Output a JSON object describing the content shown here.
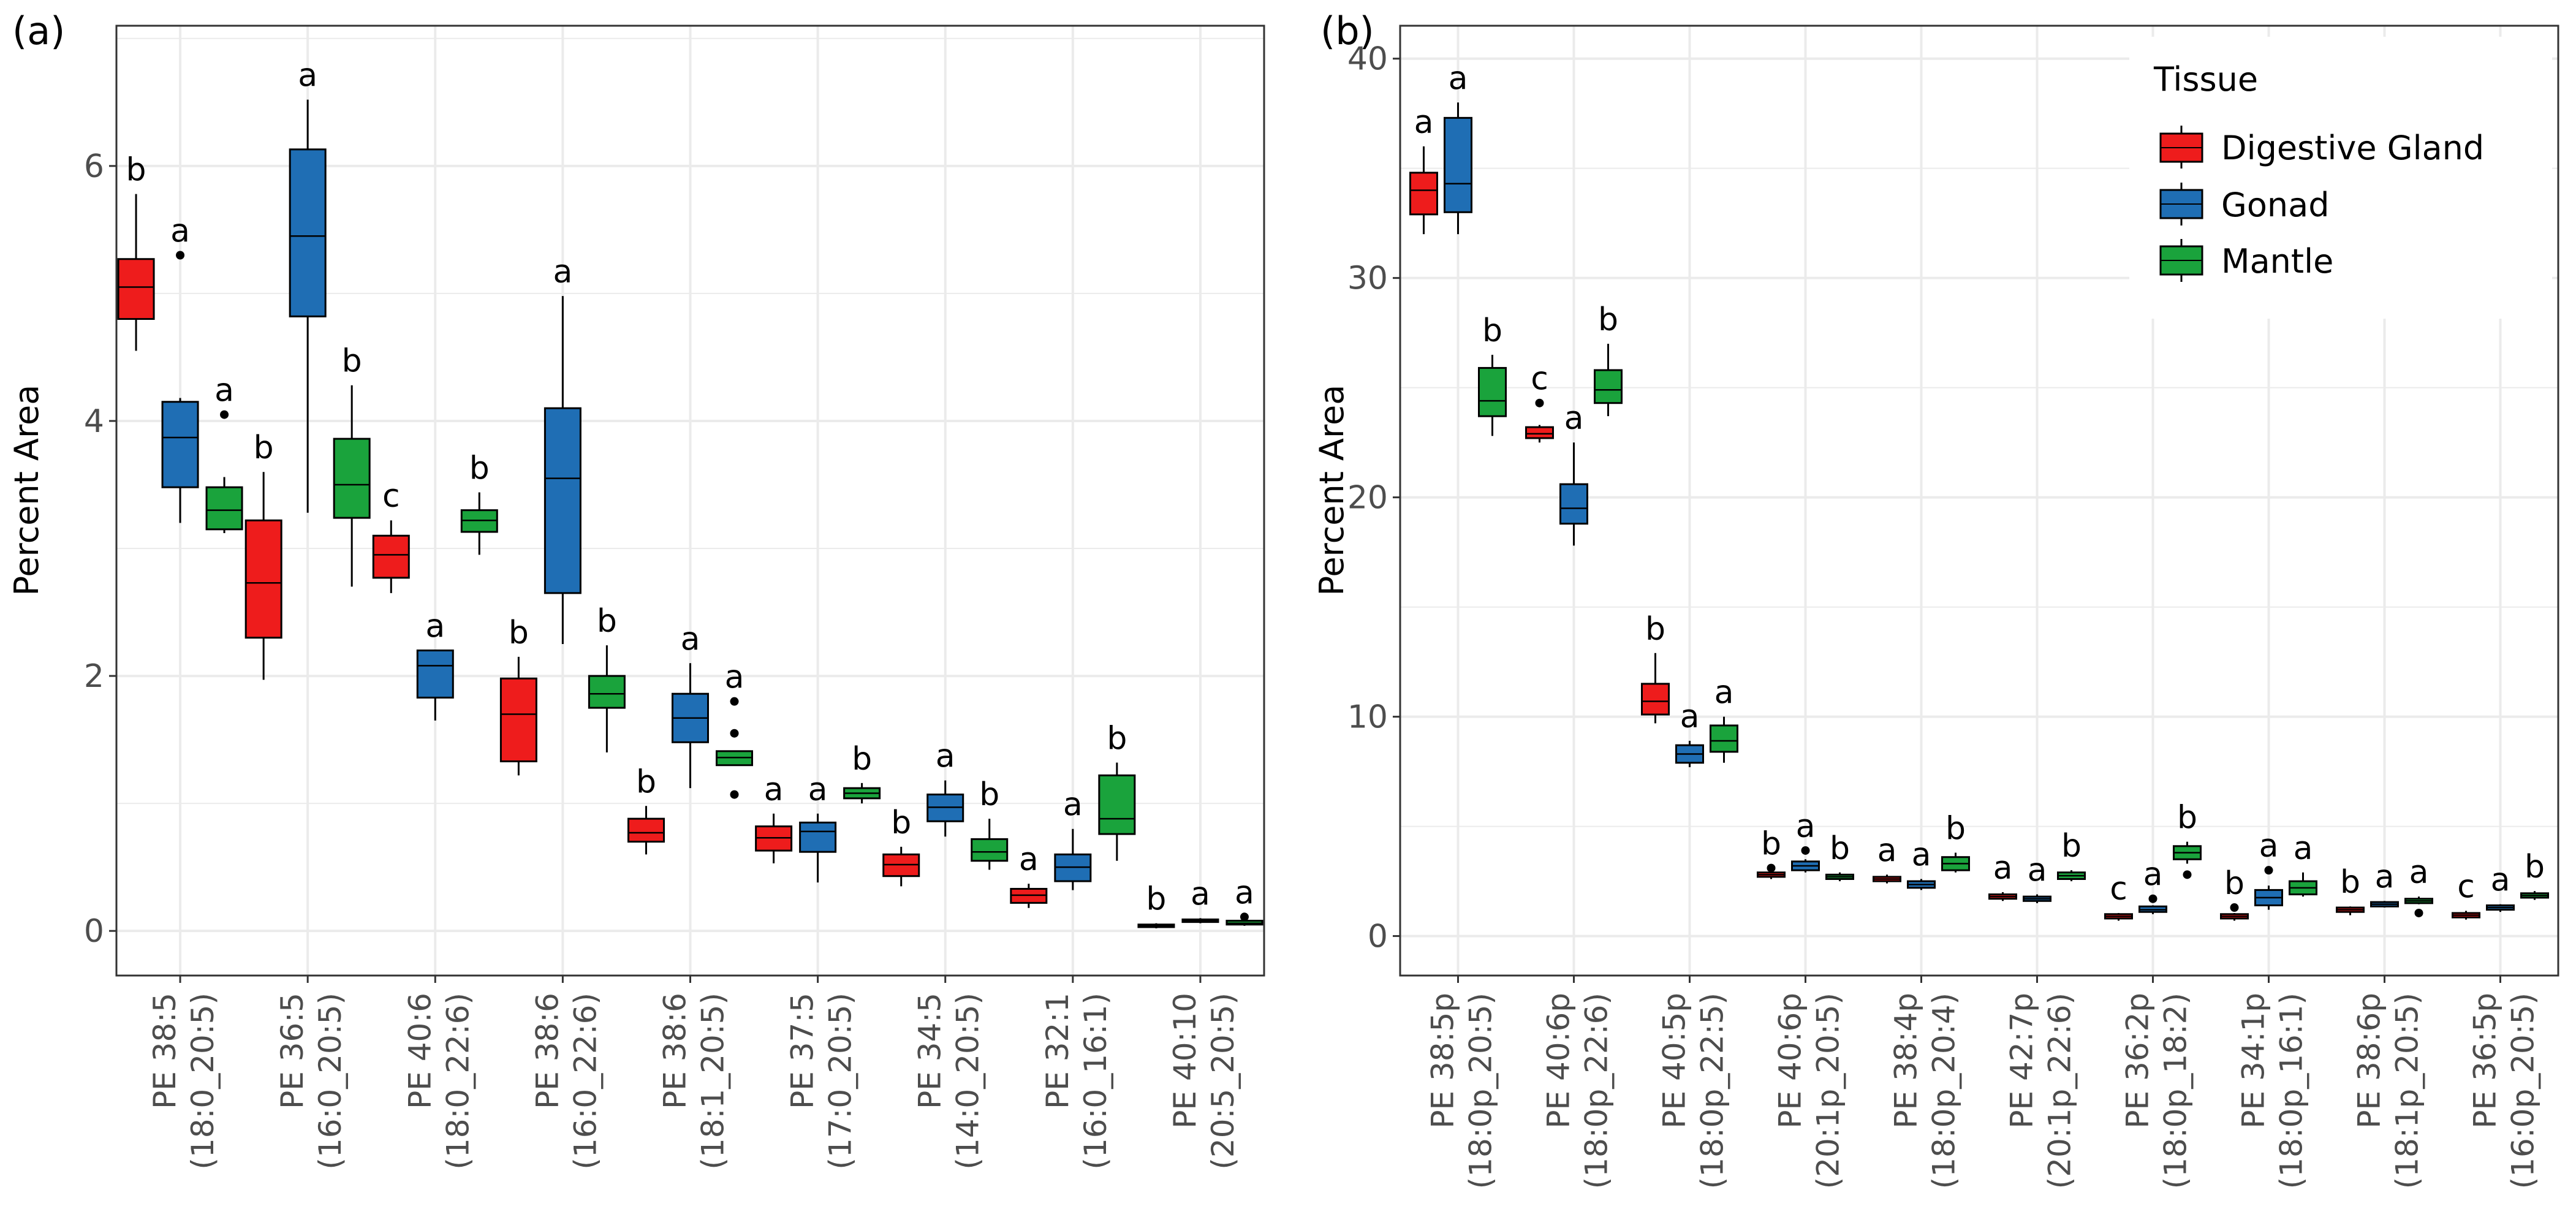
{
  "colors": {
    "digestive_gland": "#ee1c1c",
    "gonad": "#1f6eb4",
    "mantle": "#1aa33c",
    "panel_bg": "#ffffff",
    "grid": "#ebebeb",
    "text": "#000000",
    "axis_text": "#4d4d4d"
  },
  "legend": {
    "title": "Tissue",
    "items": [
      "Digestive Gland",
      "Gonad",
      "Mantle"
    ],
    "placement": "top-right of panel b"
  },
  "chart_data": [
    {
      "panel_label": "(a)",
      "type": "boxplot",
      "ylabel": "Percent Area",
      "xlabel": "",
      "ylim": [
        -0.35,
        7.1
      ],
      "yticks": [
        0,
        2,
        4,
        6
      ],
      "grid": true,
      "series_names": [
        "Digestive Gland",
        "Gonad",
        "Mantle"
      ],
      "categories": [
        {
          "line1": "PE 38:5",
          "line2": "(18:0_20:5)",
          "boxes": [
            {
              "q1": 4.8,
              "median": 5.05,
              "q3": 5.27,
              "min": 4.55,
              "max": 5.78,
              "outliers": [],
              "letter": "b"
            },
            {
              "q1": 3.48,
              "median": 3.87,
              "q3": 4.15,
              "min": 3.2,
              "max": 4.18,
              "outliers": [
                5.3
              ],
              "letter": "a"
            },
            {
              "q1": 3.15,
              "median": 3.3,
              "q3": 3.48,
              "min": 3.12,
              "max": 3.56,
              "outliers": [
                4.05
              ],
              "letter": "a"
            }
          ]
        },
        {
          "line1": "PE 36:5",
          "line2": "(16:0_20:5)",
          "boxes": [
            {
              "q1": 2.3,
              "median": 2.73,
              "q3": 3.22,
              "min": 1.97,
              "max": 3.6,
              "outliers": [],
              "letter": "b"
            },
            {
              "q1": 4.82,
              "median": 5.45,
              "q3": 6.13,
              "min": 3.28,
              "max": 6.52,
              "outliers": [],
              "letter": "a"
            },
            {
              "q1": 3.24,
              "median": 3.5,
              "q3": 3.86,
              "min": 2.7,
              "max": 4.28,
              "outliers": [],
              "letter": "b"
            }
          ]
        },
        {
          "line1": "PE 40:6",
          "line2": "(18:0_22:6)",
          "boxes": [
            {
              "q1": 2.77,
              "median": 2.95,
              "q3": 3.1,
              "min": 2.65,
              "max": 3.22,
              "outliers": [],
              "letter": "c"
            },
            {
              "q1": 1.83,
              "median": 2.08,
              "q3": 2.2,
              "min": 1.65,
              "max": 2.2,
              "outliers": [],
              "letter": "a"
            },
            {
              "q1": 3.13,
              "median": 3.22,
              "q3": 3.3,
              "min": 2.95,
              "max": 3.44,
              "outliers": [],
              "letter": "b"
            }
          ]
        },
        {
          "line1": "PE 38:6",
          "line2": "(16:0_22:6)",
          "boxes": [
            {
              "q1": 1.33,
              "median": 1.7,
              "q3": 1.98,
              "min": 1.22,
              "max": 2.15,
              "outliers": [],
              "letter": "b"
            },
            {
              "q1": 2.65,
              "median": 3.55,
              "q3": 4.1,
              "min": 2.25,
              "max": 4.98,
              "outliers": [],
              "letter": "a"
            },
            {
              "q1": 1.75,
              "median": 1.86,
              "q3": 2.0,
              "min": 1.4,
              "max": 2.24,
              "outliers": [],
              "letter": "b"
            }
          ]
        },
        {
          "line1": "PE 38:6",
          "line2": "(18:1_20:5)",
          "boxes": [
            {
              "q1": 0.7,
              "median": 0.77,
              "q3": 0.88,
              "min": 0.6,
              "max": 0.98,
              "outliers": [],
              "letter": "b"
            },
            {
              "q1": 1.48,
              "median": 1.67,
              "q3": 1.86,
              "min": 1.12,
              "max": 2.1,
              "outliers": [],
              "letter": "a"
            },
            {
              "q1": 1.3,
              "median": 1.36,
              "q3": 1.41,
              "min": 1.3,
              "max": 1.41,
              "outliers": [
                1.8,
                1.55,
                1.07
              ],
              "letter": "a"
            }
          ]
        },
        {
          "line1": "PE 37:5",
          "line2": "(17:0_20:5)",
          "boxes": [
            {
              "q1": 0.63,
              "median": 0.73,
              "q3": 0.82,
              "min": 0.53,
              "max": 0.92,
              "outliers": [],
              "letter": "a"
            },
            {
              "q1": 0.62,
              "median": 0.78,
              "q3": 0.85,
              "min": 0.38,
              "max": 0.92,
              "outliers": [],
              "letter": "a"
            },
            {
              "q1": 1.04,
              "median": 1.08,
              "q3": 1.12,
              "min": 1.0,
              "max": 1.16,
              "outliers": [],
              "letter": "b"
            }
          ]
        },
        {
          "line1": "PE 34:5",
          "line2": "(14:0_20:5)",
          "boxes": [
            {
              "q1": 0.43,
              "median": 0.52,
              "q3": 0.6,
              "min": 0.35,
              "max": 0.66,
              "outliers": [],
              "letter": "b"
            },
            {
              "q1": 0.86,
              "median": 0.97,
              "q3": 1.07,
              "min": 0.74,
              "max": 1.18,
              "outliers": [],
              "letter": "a"
            },
            {
              "q1": 0.55,
              "median": 0.62,
              "q3": 0.72,
              "min": 0.48,
              "max": 0.88,
              "outliers": [],
              "letter": "b"
            }
          ]
        },
        {
          "line1": "PE 32:1",
          "line2": "(16:0_16:1)",
          "boxes": [
            {
              "q1": 0.22,
              "median": 0.28,
              "q3": 0.33,
              "min": 0.18,
              "max": 0.37,
              "outliers": [],
              "letter": "a"
            },
            {
              "q1": 0.39,
              "median": 0.5,
              "q3": 0.6,
              "min": 0.32,
              "max": 0.8,
              "outliers": [],
              "letter": "a"
            },
            {
              "q1": 0.76,
              "median": 0.88,
              "q3": 1.22,
              "min": 0.55,
              "max": 1.32,
              "outliers": [],
              "letter": "b"
            }
          ]
        },
        {
          "line1": "PE 40:10",
          "line2": "(20:5_20:5)",
          "boxes": [
            {
              "q1": 0.03,
              "median": 0.04,
              "q3": 0.05,
              "min": 0.02,
              "max": 0.06,
              "outliers": [],
              "letter": "b"
            },
            {
              "q1": 0.07,
              "median": 0.08,
              "q3": 0.09,
              "min": 0.06,
              "max": 0.1,
              "outliers": [],
              "letter": "a"
            },
            {
              "q1": 0.05,
              "median": 0.06,
              "q3": 0.08,
              "min": 0.04,
              "max": 0.1,
              "outliers": [
                0.11
              ],
              "letter": "a"
            }
          ]
        }
      ]
    },
    {
      "panel_label": "(b)",
      "type": "boxplot",
      "ylabel": "Percent Area",
      "xlabel": "",
      "ylim": [
        -1.8,
        41.5
      ],
      "yticks": [
        0,
        10,
        20,
        30,
        40
      ],
      "grid": true,
      "series_names": [
        "Digestive Gland",
        "Gonad",
        "Mantle"
      ],
      "categories": [
        {
          "line1": "PE 38:5p",
          "line2": "(18:0p_20:5)",
          "boxes": [
            {
              "q1": 32.9,
              "median": 34.0,
              "q3": 34.8,
              "min": 32.0,
              "max": 36.0,
              "outliers": [],
              "letter": "a"
            },
            {
              "q1": 33.0,
              "median": 34.3,
              "q3": 37.3,
              "min": 32.0,
              "max": 38.0,
              "outliers": [],
              "letter": "a"
            },
            {
              "q1": 23.7,
              "median": 24.4,
              "q3": 25.9,
              "min": 22.8,
              "max": 26.5,
              "outliers": [],
              "letter": "b"
            }
          ]
        },
        {
          "line1": "PE 40:6p",
          "line2": "(18:0p_22:6)",
          "boxes": [
            {
              "q1": 22.7,
              "median": 22.9,
              "q3": 23.2,
              "min": 22.5,
              "max": 23.3,
              "outliers": [
                24.3
              ],
              "letter": "c"
            },
            {
              "q1": 18.8,
              "median": 19.5,
              "q3": 20.6,
              "min": 17.8,
              "max": 22.5,
              "outliers": [],
              "letter": "a"
            },
            {
              "q1": 24.3,
              "median": 24.9,
              "q3": 25.8,
              "min": 23.7,
              "max": 27.0,
              "outliers": [],
              "letter": "b"
            }
          ]
        },
        {
          "line1": "PE 40:5p",
          "line2": "(18:0p_22:5)",
          "boxes": [
            {
              "q1": 10.1,
              "median": 10.7,
              "q3": 11.5,
              "min": 9.7,
              "max": 12.9,
              "outliers": [],
              "letter": "b"
            },
            {
              "q1": 7.9,
              "median": 8.3,
              "q3": 8.7,
              "min": 7.7,
              "max": 8.9,
              "outliers": [],
              "letter": "a"
            },
            {
              "q1": 8.4,
              "median": 8.9,
              "q3": 9.6,
              "min": 7.9,
              "max": 10.0,
              "outliers": [],
              "letter": "a"
            }
          ]
        },
        {
          "line1": "PE 40:6p",
          "line2": "(20:1p_20:5)",
          "boxes": [
            {
              "q1": 2.7,
              "median": 2.8,
              "q3": 2.9,
              "min": 2.6,
              "max": 3.0,
              "outliers": [
                3.1
              ],
              "letter": "b"
            },
            {
              "q1": 3.0,
              "median": 3.2,
              "q3": 3.4,
              "min": 2.9,
              "max": 3.5,
              "outliers": [
                3.9
              ],
              "letter": "a"
            },
            {
              "q1": 2.6,
              "median": 2.7,
              "q3": 2.8,
              "min": 2.5,
              "max": 2.9,
              "outliers": [],
              "letter": "b"
            }
          ]
        },
        {
          "line1": "PE 38:4p",
          "line2": "(18:0p_20:4)",
          "boxes": [
            {
              "q1": 2.5,
              "median": 2.6,
              "q3": 2.7,
              "min": 2.4,
              "max": 2.8,
              "outliers": [],
              "letter": "a"
            },
            {
              "q1": 2.2,
              "median": 2.35,
              "q3": 2.5,
              "min": 2.1,
              "max": 2.6,
              "outliers": [],
              "letter": "a"
            },
            {
              "q1": 3.0,
              "median": 3.3,
              "q3": 3.6,
              "min": 2.9,
              "max": 3.8,
              "outliers": [],
              "letter": "b"
            }
          ]
        },
        {
          "line1": "PE 42:7p",
          "line2": "(20:1p_22:6)",
          "boxes": [
            {
              "q1": 1.7,
              "median": 1.8,
              "q3": 1.9,
              "min": 1.6,
              "max": 2.0,
              "outliers": [],
              "letter": "a"
            },
            {
              "q1": 1.6,
              "median": 1.7,
              "q3": 1.8,
              "min": 1.5,
              "max": 1.9,
              "outliers": [],
              "letter": "a"
            },
            {
              "q1": 2.6,
              "median": 2.75,
              "q3": 2.9,
              "min": 2.5,
              "max": 3.0,
              "outliers": [],
              "letter": "b"
            }
          ]
        },
        {
          "line1": "PE 36:2p",
          "line2": "(18:0p_18:2)",
          "boxes": [
            {
              "q1": 0.8,
              "median": 0.9,
              "q3": 1.0,
              "min": 0.7,
              "max": 1.05,
              "outliers": [],
              "letter": "c"
            },
            {
              "q1": 1.1,
              "median": 1.2,
              "q3": 1.35,
              "min": 1.0,
              "max": 1.4,
              "outliers": [
                1.7
              ],
              "letter": "a"
            },
            {
              "q1": 3.5,
              "median": 3.8,
              "q3": 4.1,
              "min": 3.3,
              "max": 4.3,
              "outliers": [
                2.8
              ],
              "letter": "b"
            }
          ]
        },
        {
          "line1": "PE 34:1p",
          "line2": "(18:0p_16:1)",
          "boxes": [
            {
              "q1": 0.8,
              "median": 0.9,
              "q3": 1.0,
              "min": 0.7,
              "max": 1.05,
              "outliers": [
                1.3
              ],
              "letter": "b"
            },
            {
              "q1": 1.4,
              "median": 1.75,
              "q3": 2.1,
              "min": 1.2,
              "max": 2.3,
              "outliers": [
                3.0
              ],
              "letter": "a"
            },
            {
              "q1": 1.9,
              "median": 2.2,
              "q3": 2.5,
              "min": 1.8,
              "max": 2.9,
              "outliers": [],
              "letter": "a"
            }
          ]
        },
        {
          "line1": "PE 38:6p",
          "line2": "(18:1p_20:5)",
          "boxes": [
            {
              "q1": 1.1,
              "median": 1.2,
              "q3": 1.3,
              "min": 0.95,
              "max": 1.35,
              "outliers": [],
              "letter": "b"
            },
            {
              "q1": 1.35,
              "median": 1.45,
              "q3": 1.55,
              "min": 1.3,
              "max": 1.6,
              "outliers": [],
              "letter": "a"
            },
            {
              "q1": 1.5,
              "median": 1.6,
              "q3": 1.7,
              "min": 1.45,
              "max": 1.8,
              "outliers": [
                1.05
              ],
              "letter": "a"
            }
          ]
        },
        {
          "line1": "PE 36:5p",
          "line2": "(16:0p_20:5)",
          "boxes": [
            {
              "q1": 0.85,
              "median": 0.95,
              "q3": 1.05,
              "min": 0.75,
              "max": 1.15,
              "outliers": [],
              "letter": "c"
            },
            {
              "q1": 1.2,
              "median": 1.3,
              "q3": 1.4,
              "min": 1.1,
              "max": 1.45,
              "outliers": [],
              "letter": "a"
            },
            {
              "q1": 1.75,
              "median": 1.85,
              "q3": 1.95,
              "min": 1.65,
              "max": 2.05,
              "outliers": [],
              "letter": "b"
            }
          ]
        }
      ]
    }
  ]
}
